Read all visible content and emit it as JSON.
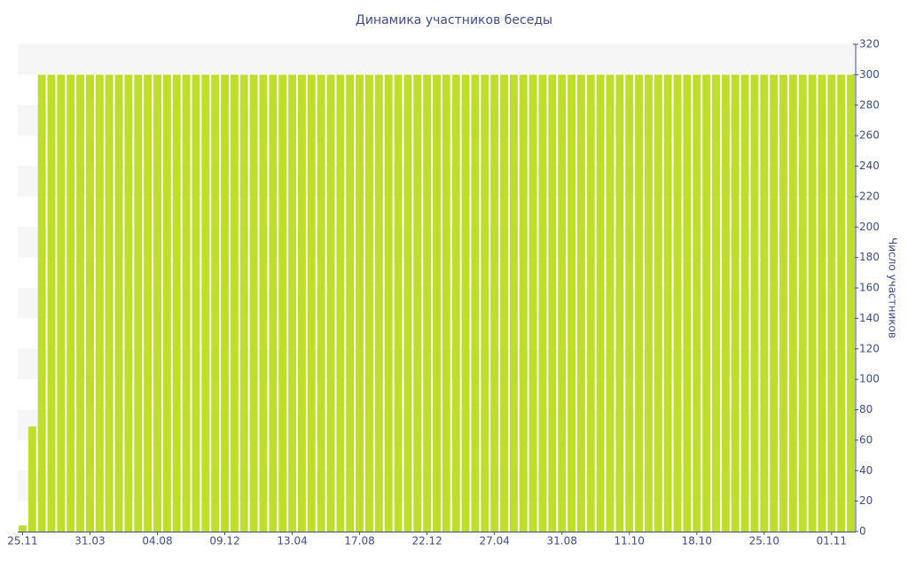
{
  "chart_data": {
    "type": "bar",
    "title": "Динамика участников беседы",
    "y_axis_label": "Число участников",
    "categories": [
      "25.11",
      null,
      null,
      null,
      null,
      null,
      null,
      "31.03",
      null,
      null,
      null,
      null,
      null,
      null,
      "04.08",
      null,
      null,
      null,
      null,
      null,
      null,
      "09.12",
      null,
      null,
      null,
      null,
      null,
      null,
      "13.04",
      null,
      null,
      null,
      null,
      null,
      null,
      "17.08",
      null,
      null,
      null,
      null,
      null,
      null,
      "22.12",
      null,
      null,
      null,
      null,
      null,
      null,
      "27.04",
      null,
      null,
      null,
      null,
      null,
      null,
      "31.08",
      null,
      null,
      null,
      null,
      null,
      null,
      "11.10",
      null,
      null,
      null,
      null,
      null,
      null,
      "18.10",
      null,
      null,
      null,
      null,
      null,
      null,
      "25.10",
      null,
      null,
      null,
      null,
      null,
      null,
      "01.11",
      null,
      null
    ],
    "values": [
      4,
      69,
      300,
      300,
      300,
      300,
      300,
      300,
      300,
      300,
      300,
      300,
      300,
      300,
      300,
      300,
      300,
      300,
      300,
      300,
      300,
      300,
      300,
      300,
      300,
      300,
      300,
      300,
      300,
      300,
      300,
      300,
      300,
      300,
      300,
      300,
      300,
      300,
      300,
      300,
      300,
      300,
      300,
      300,
      300,
      300,
      300,
      300,
      300,
      300,
      300,
      300,
      300,
      300,
      300,
      300,
      300,
      300,
      300,
      300,
      300,
      300,
      300,
      300,
      300,
      300,
      300,
      300,
      300,
      300,
      300,
      300,
      300,
      300,
      300,
      300,
      300,
      300,
      300,
      300,
      300,
      300,
      300,
      300,
      300,
      300,
      300
    ],
    "color": "#bfdd2b",
    "ylim": [
      0,
      320
    ],
    "yticks": [
      0,
      20,
      40,
      60,
      80,
      100,
      120,
      140,
      160,
      180,
      200,
      220,
      240,
      260,
      280,
      300,
      320
    ],
    "y_axis_side": "right",
    "grid": true
  }
}
